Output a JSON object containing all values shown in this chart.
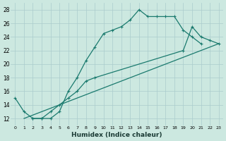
{
  "xlabel": "Humidex (Indice chaleur)",
  "bg_color": "#cce8e0",
  "grid_color": "#aacccc",
  "line_color": "#1a7a6e",
  "xlim": [
    -0.5,
    23.5
  ],
  "ylim": [
    11,
    29
  ],
  "xticks": [
    0,
    1,
    2,
    3,
    4,
    5,
    6,
    7,
    8,
    9,
    10,
    11,
    12,
    13,
    14,
    15,
    16,
    17,
    18,
    19,
    20,
    21,
    22,
    23
  ],
  "yticks": [
    12,
    14,
    16,
    18,
    20,
    22,
    24,
    26,
    28
  ],
  "s1x": [
    0,
    1,
    2,
    3,
    4,
    5,
    6,
    7,
    8,
    9,
    10,
    11,
    12,
    13,
    14,
    15,
    16,
    17,
    18,
    19,
    20,
    21
  ],
  "s1y": [
    15,
    13,
    12,
    12,
    12,
    13,
    16,
    18,
    20.5,
    22.5,
    24.5,
    25,
    25.5,
    26.5,
    28,
    27,
    27,
    27,
    27,
    25,
    24,
    23
  ],
  "s2x": [
    2,
    3,
    4,
    5,
    6,
    7,
    8,
    9,
    19,
    20,
    21,
    22,
    23
  ],
  "s2y": [
    12,
    12,
    13,
    14,
    15,
    16,
    17.5,
    18,
    22,
    25.5,
    24,
    23.5,
    23
  ],
  "s3x": [
    1,
    23
  ],
  "s3y": [
    12,
    23
  ]
}
